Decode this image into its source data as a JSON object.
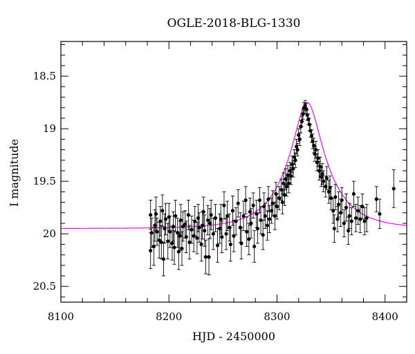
{
  "chart_data": {
    "type": "scatter",
    "title": "OGLE-2018-BLG-1330",
    "xlabel": "HJD - 2450000",
    "ylabel": "I magnitude",
    "xlim": [
      8100,
      8420
    ],
    "ylim": [
      20.65,
      18.17
    ],
    "y_inverted": true,
    "x_ticks": [
      "8100",
      "8200",
      "8300",
      "8400"
    ],
    "y_ticks": [
      "18.5",
      "19",
      "19.5",
      "20",
      "20.5"
    ],
    "grid": false,
    "series": [
      {
        "marker": "circle",
        "color": "#000000",
        "points": [
          [
            8183,
            19.82,
            0.14
          ],
          [
            8183,
            20.16,
            0.17
          ],
          [
            8184,
            19.99,
            0.14
          ],
          [
            8186,
            20.12,
            0.18
          ],
          [
            8187,
            19.92,
            0.15
          ],
          [
            8188,
            19.81,
            0.16
          ],
          [
            8189,
            19.98,
            0.13
          ],
          [
            8191,
            20.06,
            0.17
          ],
          [
            8192,
            19.88,
            0.14
          ],
          [
            8193,
            20.08,
            0.16
          ],
          [
            8194,
            19.78,
            0.15
          ],
          [
            8195,
            20.24,
            0.16
          ],
          [
            8196,
            19.95,
            0.14
          ],
          [
            8197,
            19.86,
            0.15
          ],
          [
            8199,
            20.07,
            0.17
          ],
          [
            8200,
            19.84,
            0.13
          ],
          [
            8201,
            19.98,
            0.15
          ],
          [
            8203,
            20.09,
            0.16
          ],
          [
            8204,
            19.93,
            0.14
          ],
          [
            8205,
            20.13,
            0.16
          ],
          [
            8206,
            19.83,
            0.15
          ],
          [
            8208,
            19.99,
            0.14
          ],
          [
            8209,
            20.17,
            0.17
          ],
          [
            8210,
            20.02,
            0.14
          ],
          [
            8211,
            19.87,
            0.15
          ],
          [
            8212,
            20.14,
            0.16
          ],
          [
            8213,
            19.93,
            0.14
          ],
          [
            8215,
            19.91,
            0.13
          ],
          [
            8216,
            20.03,
            0.15
          ],
          [
            8218,
            19.82,
            0.14
          ],
          [
            8219,
            20.08,
            0.16
          ],
          [
            8221,
            19.96,
            0.13
          ],
          [
            8223,
            20.02,
            0.15
          ],
          [
            8224,
            19.88,
            0.14
          ],
          [
            8226,
            20.04,
            0.15
          ],
          [
            8227,
            19.85,
            0.13
          ],
          [
            8228,
            19.94,
            0.14
          ],
          [
            8230,
            20.1,
            0.16
          ],
          [
            8231,
            19.92,
            0.13
          ],
          [
            8232,
            19.79,
            0.14
          ],
          [
            8233,
            19.97,
            0.15
          ],
          [
            8234,
            20.22,
            0.16
          ],
          [
            8236,
            19.87,
            0.14
          ],
          [
            8237,
            20.22,
            0.17
          ],
          [
            8238,
            19.9,
            0.14
          ],
          [
            8239,
            19.82,
            0.14
          ],
          [
            8241,
            20.0,
            0.15
          ],
          [
            8243,
            19.85,
            0.13
          ],
          [
            8245,
            20.11,
            0.16
          ],
          [
            8247,
            19.95,
            0.14
          ],
          [
            8248,
            19.86,
            0.14
          ],
          [
            8249,
            20.03,
            0.15
          ],
          [
            8251,
            19.73,
            0.13
          ],
          [
            8253,
            20.0,
            0.15
          ],
          [
            8254,
            19.83,
            0.14
          ],
          [
            8256,
            19.94,
            0.13
          ],
          [
            8257,
            20.1,
            0.16
          ],
          [
            8259,
            19.78,
            0.14
          ],
          [
            8260,
            20.02,
            0.15
          ],
          [
            8262,
            19.88,
            0.13
          ],
          [
            8264,
            19.71,
            0.13
          ],
          [
            8266,
            19.94,
            0.14
          ],
          [
            8267,
            20.09,
            0.15
          ],
          [
            8269,
            19.83,
            0.14
          ],
          [
            8271,
            19.68,
            0.13
          ],
          [
            8272,
            19.98,
            0.14
          ],
          [
            8274,
            20.05,
            0.15
          ],
          [
            8275,
            19.79,
            0.13
          ],
          [
            8276,
            19.9,
            0.14
          ],
          [
            8278,
            19.73,
            0.12
          ],
          [
            8279,
            20.12,
            0.15
          ],
          [
            8281,
            19.81,
            0.13
          ],
          [
            8282,
            19.95,
            0.14
          ],
          [
            8284,
            19.68,
            0.12
          ],
          [
            8285,
            19.87,
            0.13
          ],
          [
            8287,
            20.01,
            0.14
          ],
          [
            8288,
            19.74,
            0.13
          ],
          [
            8289,
            19.83,
            0.12
          ],
          [
            8291,
            19.92,
            0.14
          ],
          [
            8292,
            19.67,
            0.12
          ],
          [
            8293,
            19.86,
            0.13
          ],
          [
            8295,
            19.78,
            0.12
          ],
          [
            8296,
            19.71,
            0.12
          ],
          [
            8298,
            19.83,
            0.13
          ],
          [
            8299,
            19.62,
            0.11
          ],
          [
            8300,
            19.74,
            0.12
          ],
          [
            8302,
            19.66,
            0.11
          ],
          [
            8304,
            19.58,
            0.1
          ],
          [
            8305,
            19.7,
            0.11
          ],
          [
            8306,
            19.52,
            0.1
          ],
          [
            8307,
            19.63,
            0.1
          ],
          [
            8308,
            19.48,
            0.1
          ],
          [
            8309,
            19.55,
            0.09
          ],
          [
            8310,
            19.44,
            0.09
          ],
          [
            8311,
            19.52,
            0.09
          ],
          [
            8312,
            19.4,
            0.08
          ],
          [
            8313,
            19.45,
            0.08
          ],
          [
            8314,
            19.34,
            0.08
          ],
          [
            8315,
            19.38,
            0.08
          ],
          [
            8316,
            19.27,
            0.07
          ],
          [
            8317,
            19.3,
            0.07
          ],
          [
            8318,
            19.17,
            0.07
          ],
          [
            8319,
            19.2,
            0.06
          ],
          [
            8320,
            19.06,
            0.06
          ],
          [
            8321,
            19.1,
            0.06
          ],
          [
            8322,
            18.98,
            0.06
          ],
          [
            8323,
            18.93,
            0.05
          ],
          [
            8324,
            18.86,
            0.05
          ],
          [
            8325,
            18.8,
            0.05
          ],
          [
            8326,
            18.78,
            0.05
          ],
          [
            8327,
            18.81,
            0.05
          ],
          [
            8328,
            18.87,
            0.05
          ],
          [
            8329,
            18.91,
            0.05
          ],
          [
            8330,
            18.96,
            0.06
          ],
          [
            8331,
            19.02,
            0.06
          ],
          [
            8332,
            19.07,
            0.06
          ],
          [
            8333,
            19.12,
            0.07
          ],
          [
            8334,
            19.16,
            0.07
          ],
          [
            8335,
            19.24,
            0.07
          ],
          [
            8336,
            19.2,
            0.08
          ],
          [
            8337,
            19.32,
            0.08
          ],
          [
            8338,
            19.28,
            0.08
          ],
          [
            8339,
            19.4,
            0.09
          ],
          [
            8340,
            19.36,
            0.09
          ],
          [
            8341,
            19.46,
            0.09
          ],
          [
            8342,
            19.43,
            0.1
          ],
          [
            8343,
            19.5,
            0.1
          ],
          [
            8345,
            19.55,
            0.1
          ],
          [
            8346,
            19.47,
            0.11
          ],
          [
            8348,
            19.6,
            0.11
          ],
          [
            8349,
            19.56,
            0.11
          ],
          [
            8350,
            19.66,
            0.11
          ],
          [
            8352,
            19.78,
            0.12
          ],
          [
            8353,
            19.95,
            0.13
          ],
          [
            8354,
            19.65,
            0.12
          ],
          [
            8356,
            19.86,
            0.12
          ],
          [
            8357,
            19.72,
            0.12
          ],
          [
            8359,
            19.8,
            0.13
          ],
          [
            8360,
            19.68,
            0.12
          ],
          [
            8362,
            19.9,
            0.13
          ],
          [
            8364,
            19.75,
            0.13
          ],
          [
            8366,
            19.97,
            0.13
          ],
          [
            8367,
            19.83,
            0.12
          ],
          [
            8369,
            19.88,
            0.13
          ],
          [
            8371,
            19.62,
            0.12
          ],
          [
            8373,
            19.85,
            0.13
          ],
          [
            8375,
            19.78,
            0.13
          ],
          [
            8377,
            19.86,
            0.13
          ],
          [
            8379,
            19.74,
            0.12
          ],
          [
            8381,
            19.88,
            0.13
          ],
          [
            8383,
            19.85,
            0.13
          ],
          [
            8392,
            19.67,
            0.12
          ],
          [
            8395,
            19.81,
            0.14
          ],
          [
            8408,
            19.57,
            0.18
          ]
        ]
      }
    ],
    "model": {
      "color": "#ff00ff",
      "baseline_mag": 19.95,
      "peak_mag": 18.75,
      "t0": 8328,
      "tE": 38,
      "u0": 0.3
    }
  }
}
